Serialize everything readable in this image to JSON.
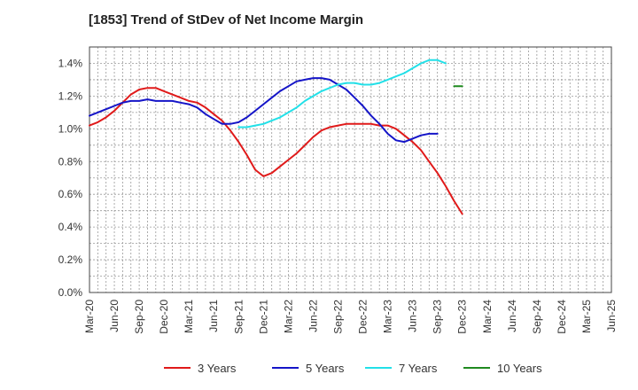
{
  "chart_data": {
    "type": "line",
    "title": "[1853]  Trend of StDev of Net Income Margin",
    "xlabel": "",
    "ylabel": "",
    "ylim": [
      0,
      1.5
    ],
    "y_ticks": [
      "0.0%",
      "0.2%",
      "0.4%",
      "0.6%",
      "0.8%",
      "1.0%",
      "1.2%",
      "1.4%"
    ],
    "y_tick_values": [
      0,
      0.2,
      0.4,
      0.6,
      0.8,
      1.0,
      1.2,
      1.4
    ],
    "x_ticks": [
      "Mar-20",
      "Jun-20",
      "Sep-20",
      "Dec-20",
      "Mar-21",
      "Jun-21",
      "Sep-21",
      "Dec-21",
      "Mar-22",
      "Jun-22",
      "Sep-22",
      "Dec-22",
      "Mar-23",
      "Jun-23",
      "Sep-23",
      "Dec-23",
      "Mar-24",
      "Jun-24",
      "Sep-24",
      "Dec-24",
      "Mar-25",
      "Jun-25"
    ],
    "grid": true,
    "legend_position": "bottom",
    "series": [
      {
        "name": "3 Years",
        "color": "#e01a1a",
        "start_index": 0,
        "values": [
          1.02,
          1.04,
          1.07,
          1.11,
          1.16,
          1.21,
          1.24,
          1.25,
          1.25,
          1.23,
          1.21,
          1.19,
          1.17,
          1.16,
          1.13,
          1.09,
          1.05,
          0.99,
          0.92,
          0.84,
          0.75,
          0.71,
          0.73,
          0.77,
          0.81,
          0.85,
          0.9,
          0.95,
          0.99,
          1.01,
          1.02,
          1.03,
          1.03,
          1.03,
          1.03,
          1.02,
          1.02,
          1.0,
          0.96,
          0.92,
          0.87,
          0.8,
          0.73,
          0.65,
          0.56,
          0.48
        ]
      },
      {
        "name": "5 Years",
        "color": "#1515c8",
        "start_index": 0,
        "values": [
          1.08,
          1.1,
          1.12,
          1.14,
          1.16,
          1.17,
          1.17,
          1.18,
          1.17,
          1.17,
          1.17,
          1.16,
          1.15,
          1.13,
          1.09,
          1.06,
          1.03,
          1.03,
          1.04,
          1.07,
          1.11,
          1.15,
          1.19,
          1.23,
          1.26,
          1.29,
          1.3,
          1.31,
          1.31,
          1.3,
          1.27,
          1.24,
          1.19,
          1.14,
          1.08,
          1.03,
          0.97,
          0.93,
          0.92,
          0.94,
          0.96,
          0.97,
          0.97
        ]
      },
      {
        "name": "7 Years",
        "color": "#22e0e8",
        "start_index": 18,
        "values": [
          1.01,
          1.01,
          1.02,
          1.03,
          1.05,
          1.07,
          1.1,
          1.13,
          1.17,
          1.2,
          1.23,
          1.25,
          1.27,
          1.28,
          1.28,
          1.27,
          1.27,
          1.28,
          1.3,
          1.32,
          1.34,
          1.37,
          1.4,
          1.42,
          1.42,
          1.4
        ]
      },
      {
        "name": "10 Years",
        "color": "#1f8a1f",
        "start_index": 44,
        "values": [
          1.26,
          1.26
        ]
      }
    ]
  }
}
